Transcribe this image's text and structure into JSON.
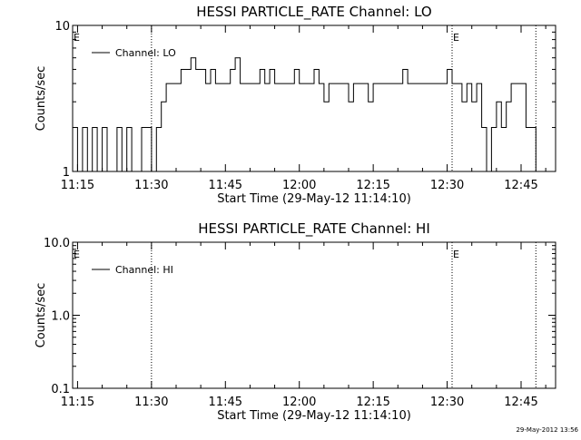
{
  "chart_data": [
    {
      "type": "line",
      "title": "HESSI PARTICLE_RATE Channel: LO",
      "xlabel": "Start Time (29-May-12 11:14:10)",
      "ylabel": "Counts/sec",
      "yscale": "log",
      "ylim": [
        1,
        10
      ],
      "xlim": [
        "11:14",
        "12:52"
      ],
      "x_ticks": [
        "11:15",
        "11:30",
        "11:45",
        "12:00",
        "12:15",
        "12:30",
        "12:45"
      ],
      "y_ticks": [
        "1",
        "10"
      ],
      "legend": {
        "placement": "top-left",
        "entries": [
          "Channel: LO"
        ]
      },
      "markers": [
        {
          "time": "11:30",
          "label": ""
        },
        {
          "time": "12:31",
          "label": "E"
        },
        {
          "time": "12:48",
          "label": ""
        }
      ],
      "start_marker_label": "E",
      "series": [
        {
          "name": "Channel: LO",
          "x": [
            "11:14",
            "11:15",
            "11:16",
            "11:17",
            "11:18",
            "11:19",
            "11:20",
            "11:21",
            "11:22",
            "11:23",
            "11:24",
            "11:25",
            "11:26",
            "11:27",
            "11:28",
            "11:29",
            "11:30",
            "11:31",
            "11:32",
            "11:33",
            "11:34",
            "11:35",
            "11:36",
            "11:37",
            "11:38",
            "11:39",
            "11:40",
            "11:41",
            "11:42",
            "11:43",
            "11:44",
            "11:45",
            "11:46",
            "11:47",
            "11:48",
            "11:49",
            "11:50",
            "11:51",
            "11:52",
            "11:53",
            "11:54",
            "11:55",
            "11:56",
            "11:57",
            "11:58",
            "11:59",
            "12:00",
            "12:01",
            "12:02",
            "12:03",
            "12:04",
            "12:05",
            "12:06",
            "12:07",
            "12:08",
            "12:09",
            "12:10",
            "12:11",
            "12:12",
            "12:13",
            "12:14",
            "12:15",
            "12:16",
            "12:17",
            "12:18",
            "12:19",
            "12:20",
            "12:21",
            "12:22",
            "12:23",
            "12:24",
            "12:25",
            "12:26",
            "12:27",
            "12:28",
            "12:29",
            "12:30",
            "12:31",
            "12:32",
            "12:33",
            "12:34",
            "12:35",
            "12:36",
            "12:37",
            "12:38",
            "12:39",
            "12:40",
            "12:41",
            "12:42",
            "12:43",
            "12:44",
            "12:45",
            "12:46",
            "12:47",
            "12:48"
          ],
          "y": [
            2,
            1,
            2,
            1,
            2,
            1,
            2,
            1,
            1,
            2,
            1,
            2,
            1,
            1,
            2,
            2,
            1,
            2,
            3,
            4,
            4,
            4,
            5,
            5,
            6,
            5,
            5,
            4,
            5,
            4,
            4,
            4,
            5,
            6,
            4,
            4,
            4,
            4,
            5,
            4,
            5,
            4,
            4,
            4,
            4,
            5,
            4,
            4,
            4,
            5,
            4,
            3,
            4,
            4,
            4,
            4,
            3,
            4,
            4,
            4,
            3,
            4,
            4,
            4,
            4,
            4,
            4,
            5,
            4,
            4,
            4,
            4,
            4,
            4,
            4,
            4,
            5,
            4,
            4,
            3,
            4,
            3,
            4,
            2,
            1,
            2,
            3,
            2,
            3,
            4,
            4,
            4,
            2,
            2,
            1
          ]
        }
      ]
    },
    {
      "type": "line",
      "title": "HESSI PARTICLE_RATE Channel: HI",
      "xlabel": "Start Time (29-May-12 11:14:10)",
      "ylabel": "Counts/sec",
      "yscale": "log",
      "ylim": [
        0.1,
        10
      ],
      "xlim": [
        "11:14",
        "12:52"
      ],
      "x_ticks": [
        "11:15",
        "11:30",
        "11:45",
        "12:00",
        "12:15",
        "12:30",
        "12:45"
      ],
      "y_ticks": [
        "0.1",
        "1.0",
        "10.0"
      ],
      "legend": {
        "placement": "top-left",
        "entries": [
          "Channel: HI"
        ]
      },
      "markers": [
        {
          "time": "11:30",
          "label": ""
        },
        {
          "time": "12:31",
          "label": "E"
        },
        {
          "time": "12:48",
          "label": ""
        }
      ],
      "start_marker_label": "E",
      "series": [
        {
          "name": "Channel: HI",
          "x": [],
          "y": []
        }
      ]
    }
  ],
  "footer": {
    "timestamp": "29-May-2012 13:56"
  }
}
